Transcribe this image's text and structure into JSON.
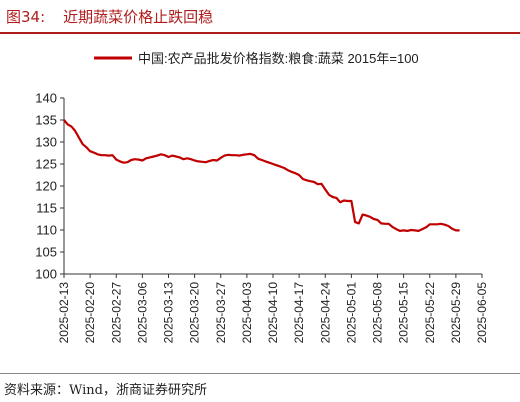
{
  "header": {
    "figure_number": "图34:",
    "title": "近期蔬菜价格止跌回稳"
  },
  "source_note": "资料来源：Wind，浙商证券研究所",
  "colors": {
    "accent": "#b01c1c",
    "line": "#c00000",
    "axis": "#333333",
    "rule": "#888888"
  },
  "chart_data": {
    "type": "line",
    "title": "",
    "xlabel": "",
    "ylabel": "",
    "ylim": [
      100,
      140
    ],
    "yticks": [
      100,
      105,
      110,
      115,
      120,
      125,
      130,
      135,
      140
    ],
    "xticks": [
      "2025-02-13",
      "2025-02-20",
      "2025-02-27",
      "2025-03-06",
      "2025-03-13",
      "2025-03-20",
      "2025-03-27",
      "2025-04-03",
      "2025-04-10",
      "2025-04-17",
      "2025-04-24",
      "2025-05-01",
      "2025-05-08",
      "2025-05-15",
      "2025-05-22",
      "2025-05-29",
      "2025-06-05"
    ],
    "grid": false,
    "legend_position": "top-right",
    "series": [
      {
        "name": "中国:农产品批发价格指数:粮食:蔬菜  2015年=100",
        "color": "#c00000",
        "points": [
          [
            "2025-02-13",
            135.0
          ],
          [
            "2025-02-14",
            134.0
          ],
          [
            "2025-02-15",
            133.5
          ],
          [
            "2025-02-16",
            132.5
          ],
          [
            "2025-02-17",
            131.0
          ],
          [
            "2025-02-18",
            129.5
          ],
          [
            "2025-02-19",
            128.8
          ],
          [
            "2025-02-20",
            127.9
          ],
          [
            "2025-02-21",
            127.6
          ],
          [
            "2025-02-22",
            127.2
          ],
          [
            "2025-02-23",
            127.0
          ],
          [
            "2025-02-24",
            127.0
          ],
          [
            "2025-02-25",
            126.9
          ],
          [
            "2025-02-26",
            127.0
          ],
          [
            "2025-02-27",
            126.0
          ],
          [
            "2025-02-28",
            125.6
          ],
          [
            "2025-03-01",
            125.3
          ],
          [
            "2025-03-02",
            125.4
          ],
          [
            "2025-03-03",
            125.9
          ],
          [
            "2025-03-04",
            126.1
          ],
          [
            "2025-03-05",
            126.0
          ],
          [
            "2025-03-06",
            125.8
          ],
          [
            "2025-03-07",
            126.3
          ],
          [
            "2025-03-08",
            126.5
          ],
          [
            "2025-03-09",
            126.7
          ],
          [
            "2025-03-10",
            126.9
          ],
          [
            "2025-03-11",
            127.2
          ],
          [
            "2025-03-12",
            127.0
          ],
          [
            "2025-03-13",
            126.6
          ],
          [
            "2025-03-14",
            126.9
          ],
          [
            "2025-03-15",
            126.7
          ],
          [
            "2025-03-16",
            126.5
          ],
          [
            "2025-03-17",
            126.1
          ],
          [
            "2025-03-18",
            126.3
          ],
          [
            "2025-03-19",
            126.1
          ],
          [
            "2025-03-20",
            125.8
          ],
          [
            "2025-03-21",
            125.6
          ],
          [
            "2025-03-22",
            125.5
          ],
          [
            "2025-03-23",
            125.4
          ],
          [
            "2025-03-24",
            125.7
          ],
          [
            "2025-03-25",
            125.9
          ],
          [
            "2025-03-26",
            125.8
          ],
          [
            "2025-03-27",
            126.4
          ],
          [
            "2025-03-28",
            126.9
          ],
          [
            "2025-03-29",
            127.1
          ],
          [
            "2025-03-30",
            127.0
          ],
          [
            "2025-03-31",
            127.0
          ],
          [
            "2025-04-01",
            126.9
          ],
          [
            "2025-04-02",
            127.1
          ],
          [
            "2025-04-03",
            127.2
          ],
          [
            "2025-04-04",
            127.3
          ],
          [
            "2025-04-05",
            127.0
          ],
          [
            "2025-04-06",
            126.2
          ],
          [
            "2025-04-07",
            125.9
          ],
          [
            "2025-04-08",
            125.6
          ],
          [
            "2025-04-09",
            125.3
          ],
          [
            "2025-04-10",
            125.0
          ],
          [
            "2025-04-11",
            124.7
          ],
          [
            "2025-04-12",
            124.4
          ],
          [
            "2025-04-13",
            124.1
          ],
          [
            "2025-04-14",
            123.6
          ],
          [
            "2025-04-15",
            123.2
          ],
          [
            "2025-04-16",
            122.9
          ],
          [
            "2025-04-17",
            122.5
          ],
          [
            "2025-04-18",
            121.6
          ],
          [
            "2025-04-19",
            121.3
          ],
          [
            "2025-04-20",
            121.1
          ],
          [
            "2025-04-21",
            120.9
          ],
          [
            "2025-04-22",
            120.4
          ],
          [
            "2025-04-23",
            120.5
          ],
          [
            "2025-04-24",
            119.2
          ],
          [
            "2025-04-25",
            118.0
          ],
          [
            "2025-04-26",
            117.5
          ],
          [
            "2025-04-27",
            117.3
          ],
          [
            "2025-04-28",
            116.3
          ],
          [
            "2025-04-29",
            116.7
          ],
          [
            "2025-04-30",
            116.6
          ],
          [
            "2025-05-01",
            116.6
          ],
          [
            "2025-05-02",
            111.8
          ],
          [
            "2025-05-03",
            111.5
          ],
          [
            "2025-05-04",
            113.5
          ],
          [
            "2025-05-05",
            113.3
          ],
          [
            "2025-05-06",
            113.0
          ],
          [
            "2025-05-07",
            112.5
          ],
          [
            "2025-05-08",
            112.3
          ],
          [
            "2025-05-09",
            111.5
          ],
          [
            "2025-05-10",
            111.4
          ],
          [
            "2025-05-11",
            111.4
          ],
          [
            "2025-05-12",
            110.7
          ],
          [
            "2025-05-13",
            110.2
          ],
          [
            "2025-05-14",
            109.8
          ],
          [
            "2025-05-15",
            109.9
          ],
          [
            "2025-05-16",
            109.8
          ],
          [
            "2025-05-17",
            110.0
          ],
          [
            "2025-05-18",
            109.9
          ],
          [
            "2025-05-19",
            109.8
          ],
          [
            "2025-05-20",
            110.2
          ],
          [
            "2025-05-21",
            110.6
          ],
          [
            "2025-05-22",
            111.3
          ],
          [
            "2025-05-23",
            111.3
          ],
          [
            "2025-05-24",
            111.3
          ],
          [
            "2025-05-25",
            111.4
          ],
          [
            "2025-05-26",
            111.2
          ],
          [
            "2025-05-27",
            110.9
          ],
          [
            "2025-05-28",
            110.3
          ],
          [
            "2025-05-29",
            109.9
          ],
          [
            "2025-05-30",
            109.9
          ]
        ]
      }
    ]
  }
}
